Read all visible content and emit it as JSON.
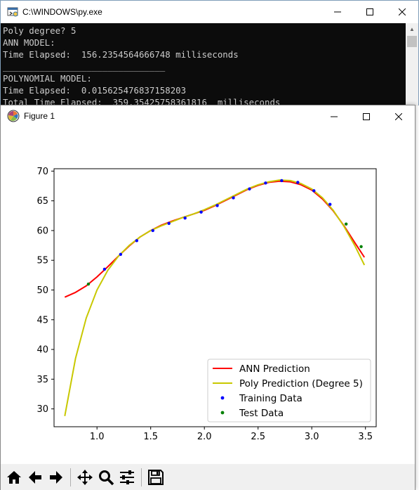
{
  "console": {
    "title": "C:\\WINDOWS\\py.exe",
    "lines": [
      "Poly degree? 5",
      "ANN MODEL:",
      "Time Elapsed:  156.2354564666748 milliseconds",
      "_______________________________",
      "POLYNOMIAL MODEL:",
      "Time Elapsed:  0.015625476837158203",
      "Total Time Elapsed:  359.35425758361816  milliseconds"
    ]
  },
  "figure": {
    "title": "Figure 1"
  },
  "chart_data": {
    "type": "line",
    "xlim": [
      0.6,
      3.6
    ],
    "ylim": [
      27,
      70.4
    ],
    "x_ticks": [
      1.0,
      1.5,
      2.0,
      2.5,
      3.0,
      3.5
    ],
    "x_tick_labels": [
      "1.0",
      "1.5",
      "2.0",
      "2.5",
      "3.0",
      "3.5"
    ],
    "y_ticks": [
      30,
      35,
      40,
      45,
      50,
      55,
      60,
      65,
      70
    ],
    "y_tick_labels": [
      "30",
      "35",
      "40",
      "45",
      "50",
      "55",
      "60",
      "65",
      "70"
    ],
    "legend_position": "lower-right",
    "series": [
      {
        "name": "ANN Prediction",
        "kind": "line",
        "color": "#ff0000",
        "x": [
          0.7,
          0.8,
          0.9,
          1.0,
          1.1,
          1.2,
          1.3,
          1.4,
          1.5,
          1.6,
          1.7,
          1.8,
          1.9,
          2.0,
          2.1,
          2.2,
          2.3,
          2.4,
          2.5,
          2.6,
          2.7,
          2.8,
          2.9,
          3.0,
          3.1,
          3.2,
          3.3,
          3.4,
          3.49
        ],
        "y": [
          48.8,
          49.6,
          50.7,
          52.2,
          53.9,
          55.7,
          57.4,
          58.9,
          60.0,
          60.9,
          61.6,
          62.2,
          62.8,
          63.4,
          64.2,
          65.1,
          66.0,
          66.9,
          67.6,
          68.1,
          68.3,
          68.2,
          67.7,
          66.8,
          65.3,
          63.3,
          60.8,
          58.0,
          55.5
        ]
      },
      {
        "name": "Poly Prediction (Degree 5)",
        "kind": "line",
        "color": "#c8c800",
        "x": [
          0.7,
          0.8,
          0.9,
          1.0,
          1.1,
          1.2,
          1.3,
          1.4,
          1.5,
          1.6,
          1.7,
          1.8,
          1.9,
          2.0,
          2.1,
          2.2,
          2.3,
          2.4,
          2.5,
          2.6,
          2.7,
          2.8,
          2.9,
          3.0,
          3.1,
          3.2,
          3.3,
          3.4,
          3.49
        ],
        "y": [
          28.8,
          38.5,
          45.3,
          50.0,
          53.3,
          55.7,
          57.5,
          58.9,
          60.0,
          60.8,
          61.5,
          62.2,
          62.8,
          63.5,
          64.3,
          65.2,
          66.1,
          67.0,
          67.7,
          68.2,
          68.5,
          68.4,
          67.9,
          67.0,
          65.5,
          63.4,
          60.7,
          57.5,
          54.2
        ]
      },
      {
        "name": "Training Data",
        "kind": "scatter",
        "color": "#0000ff",
        "x": [
          1.07,
          1.22,
          1.37,
          1.52,
          1.67,
          1.82,
          1.97,
          2.12,
          2.27,
          2.42,
          2.57,
          2.72,
          2.87,
          3.02,
          3.17
        ],
        "y": [
          53.5,
          56.0,
          58.3,
          60.0,
          61.2,
          62.1,
          63.1,
          64.2,
          65.5,
          67.0,
          68.0,
          68.4,
          68.1,
          66.7,
          64.4
        ]
      },
      {
        "name": "Test Data",
        "kind": "scatter",
        "color": "#008000",
        "x": [
          0.92,
          3.32,
          3.46
        ],
        "y": [
          51.0,
          61.1,
          57.3
        ]
      }
    ]
  }
}
